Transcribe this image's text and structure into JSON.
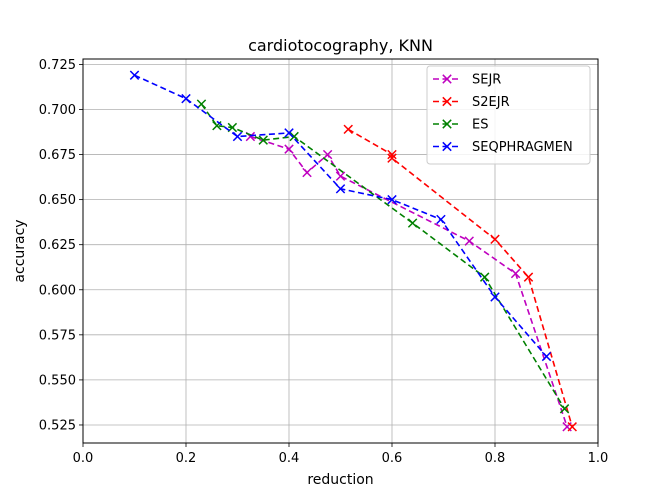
{
  "chart_data": {
    "type": "line",
    "title": "cardiotocography, KNN",
    "xlabel": "reduction",
    "ylabel": "accuracy",
    "xlim": [
      0.0,
      1.0
    ],
    "ylim": [
      0.515,
      0.728
    ],
    "xticks": [
      0.0,
      0.2,
      0.4,
      0.6,
      0.8,
      1.0
    ],
    "xtick_labels": [
      "0.0",
      "0.2",
      "0.4",
      "0.6",
      "0.8",
      "1.0"
    ],
    "yticks": [
      0.525,
      0.55,
      0.575,
      0.6,
      0.625,
      0.65,
      0.675,
      0.7,
      0.725
    ],
    "ytick_labels": [
      "0.525",
      "0.550",
      "0.575",
      "0.600",
      "0.625",
      "0.650",
      "0.675",
      "0.700",
      "0.725"
    ],
    "grid": true,
    "legend_position": "top-right",
    "series": [
      {
        "name": "SEJR",
        "color": "#bf00bf",
        "x": [
          0.325,
          0.4,
          0.435,
          0.475,
          0.5,
          0.75,
          0.84,
          0.94
        ],
        "y": [
          0.685,
          0.678,
          0.665,
          0.675,
          0.663,
          0.627,
          0.609,
          0.524
        ]
      },
      {
        "name": "S2EJR",
        "color": "#ff0000",
        "x": [
          0.515,
          0.6,
          0.6,
          0.8,
          0.865,
          0.95
        ],
        "y": [
          0.689,
          0.675,
          0.673,
          0.628,
          0.607,
          0.524
        ]
      },
      {
        "name": "ES",
        "color": "#008000",
        "x": [
          0.23,
          0.26,
          0.29,
          0.35,
          0.41,
          0.64,
          0.78,
          0.935
        ],
        "y": [
          0.703,
          0.691,
          0.69,
          0.683,
          0.685,
          0.637,
          0.607,
          0.534
        ]
      },
      {
        "name": "SEQPHRAGMEN",
        "color": "#0000ff",
        "x": [
          0.1,
          0.2,
          0.3,
          0.4,
          0.5,
          0.6,
          0.695,
          0.8,
          0.9
        ],
        "y": [
          0.719,
          0.706,
          0.685,
          0.687,
          0.656,
          0.65,
          0.639,
          0.596,
          0.563
        ]
      }
    ]
  }
}
